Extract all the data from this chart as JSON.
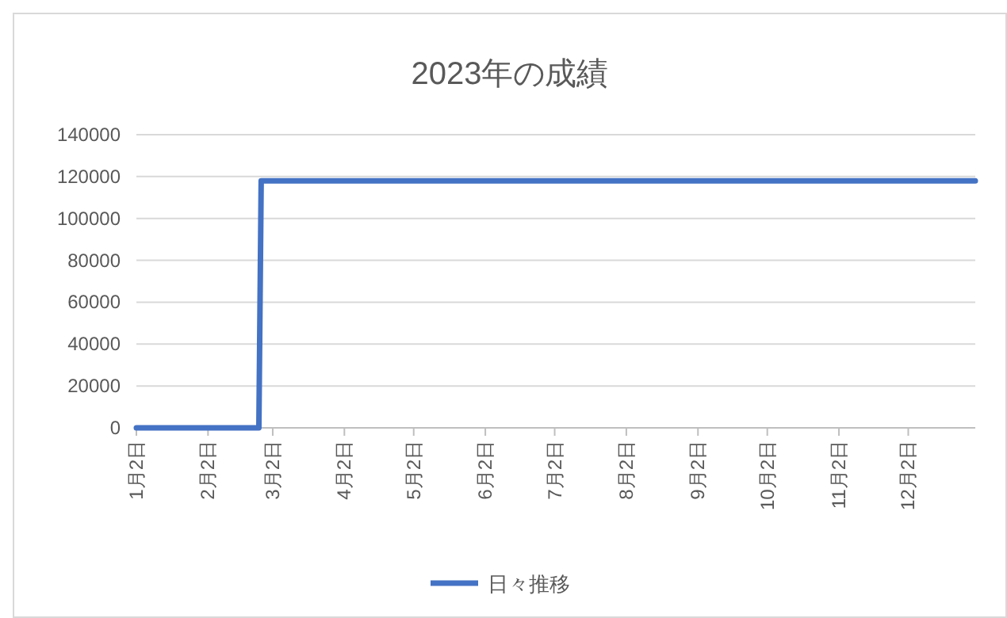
{
  "chart_data": {
    "type": "line",
    "title": "2023年の成績",
    "x": [
      "2023-01-02",
      "2023-02-24",
      "2023-02-25",
      "2023-12-31"
    ],
    "series": [
      {
        "name": "日々推移",
        "color": "#4472c4",
        "values": [
          0,
          0,
          118000,
          118000
        ]
      }
    ],
    "xlim": [
      "2023-01-02",
      "2023-12-31"
    ],
    "xticks": [
      {
        "value": "2023-01-02",
        "label": "1月2日"
      },
      {
        "value": "2023-02-02",
        "label": "2月2日"
      },
      {
        "value": "2023-03-02",
        "label": "3月2日"
      },
      {
        "value": "2023-04-02",
        "label": "4月2日"
      },
      {
        "value": "2023-05-02",
        "label": "5月2日"
      },
      {
        "value": "2023-06-02",
        "label": "6月2日"
      },
      {
        "value": "2023-07-02",
        "label": "7月2日"
      },
      {
        "value": "2023-08-02",
        "label": "8月2日"
      },
      {
        "value": "2023-09-02",
        "label": "9月2日"
      },
      {
        "value": "2023-10-02",
        "label": "10月2日"
      },
      {
        "value": "2023-11-02",
        "label": "11月2日"
      },
      {
        "value": "2023-12-02",
        "label": "12月2日"
      }
    ],
    "ylim": [
      0,
      140000
    ],
    "yticks": [
      0,
      20000,
      40000,
      60000,
      80000,
      100000,
      120000,
      140000
    ],
    "grid": "y",
    "legend": "bottom",
    "marker": "none",
    "line_style": "solid"
  }
}
